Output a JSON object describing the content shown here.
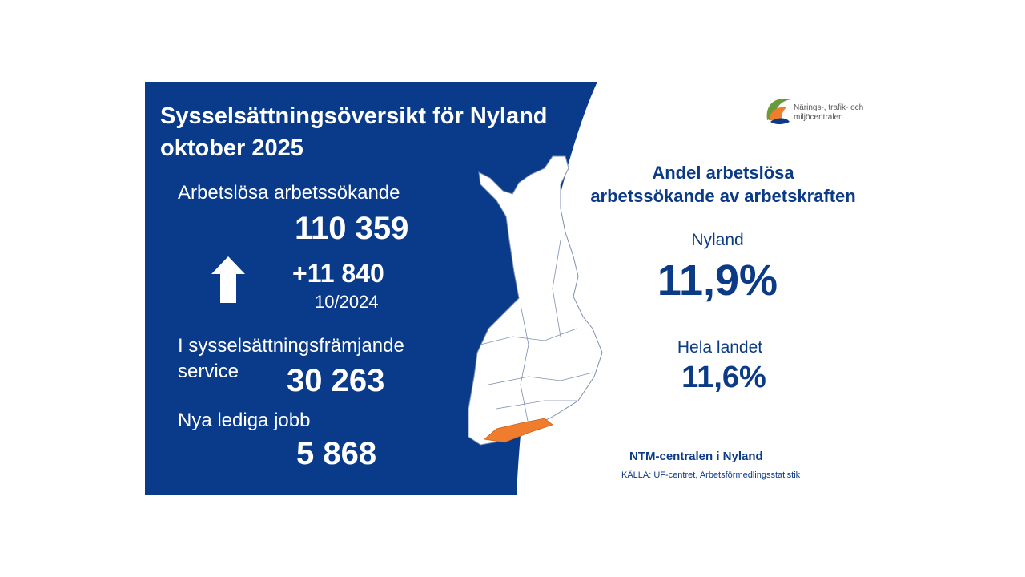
{
  "title": {
    "lines": [
      "Sysselsättningsöversikt för Nyland",
      "oktober 2025"
    ]
  },
  "unemployed": {
    "label": "Arbetslösa arbetssökande",
    "value": "110 359",
    "change": "+11 840",
    "change_period": "10/2024"
  },
  "services": {
    "label_lines": [
      "I sysselsättningsfrämjande",
      "service"
    ],
    "value": "30 263"
  },
  "vacancies": {
    "label": "Nya lediga jobb",
    "value": "5 868"
  },
  "logo": {
    "lines": [
      "Närings-, trafik- och",
      "miljöcentralen"
    ]
  },
  "rate": {
    "heading_lines": [
      "Andel arbetslösa",
      "arbetssökande av arbetskraften"
    ],
    "regions": [
      {
        "name": "Nyland",
        "value": "11,9%"
      },
      {
        "name": "Hela landet",
        "value": "11,6%"
      }
    ]
  },
  "footer": {
    "org": "NTM-centralen i Nyland",
    "source": "KÄLLA: UF-centret, Arbetsförmedlingsstatistik"
  }
}
